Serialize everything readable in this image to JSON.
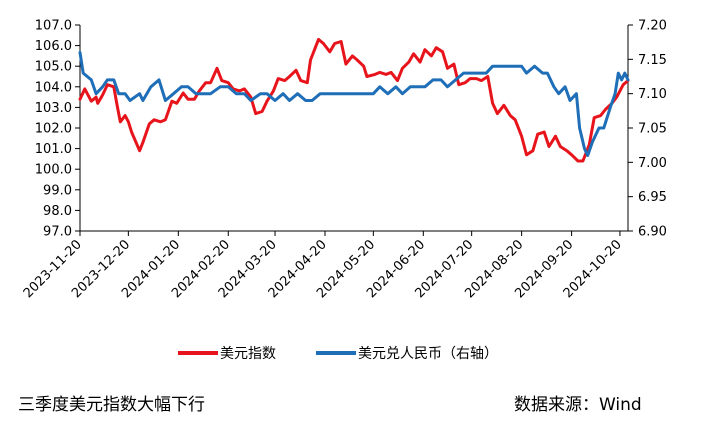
{
  "chart_data": {
    "type": "line",
    "x_ticks": [
      "2023-11-20",
      "2023-12-20",
      "2024-01-20",
      "2024-02-20",
      "2024-03-20",
      "2024-04-20",
      "2024-05-20",
      "2024-06-20",
      "2024-07-20",
      "2024-08-20",
      "2024-09-20",
      "2024-10-20"
    ],
    "x_start": "2023-11-20",
    "x_end": "2024-10-25",
    "y_left": {
      "min": 97.0,
      "max": 107.0,
      "ticks": [
        "97.0",
        "98.0",
        "99.0",
        "100.0",
        "101.0",
        "102.0",
        "103.0",
        "104.0",
        "105.0",
        "106.0",
        "107.0"
      ]
    },
    "y_right": {
      "min": 6.9,
      "max": 7.2,
      "ticks": [
        "6.90",
        "6.95",
        "7.00",
        "7.05",
        "7.10",
        "7.15",
        "7.20"
      ]
    },
    "grid": false,
    "legend_position": "bottom",
    "series": [
      {
        "name": "美元指数",
        "axis": "left",
        "color": "#e8141b",
        "points": [
          [
            "2023-11-20",
            103.4
          ],
          [
            "2023-11-23",
            103.9
          ],
          [
            "2023-11-27",
            103.3
          ],
          [
            "2023-11-30",
            103.5
          ],
          [
            "2023-12-01",
            103.2
          ],
          [
            "2023-12-04",
            103.6
          ],
          [
            "2023-12-07",
            104.1
          ],
          [
            "2023-12-11",
            104.0
          ],
          [
            "2023-12-13",
            103.1
          ],
          [
            "2023-12-15",
            102.3
          ],
          [
            "2023-12-18",
            102.6
          ],
          [
            "2023-12-20",
            102.3
          ],
          [
            "2023-12-22",
            101.8
          ],
          [
            "2023-12-27",
            100.9
          ],
          [
            "2023-12-29",
            101.3
          ],
          [
            "2024-01-02",
            102.2
          ],
          [
            "2024-01-05",
            102.4
          ],
          [
            "2024-01-09",
            102.3
          ],
          [
            "2024-01-12",
            102.4
          ],
          [
            "2024-01-16",
            103.3
          ],
          [
            "2024-01-19",
            103.2
          ],
          [
            "2024-01-23",
            103.7
          ],
          [
            "2024-01-26",
            103.4
          ],
          [
            "2024-01-30",
            103.4
          ],
          [
            "2024-02-02",
            103.8
          ],
          [
            "2024-02-06",
            104.2
          ],
          [
            "2024-02-09",
            104.2
          ],
          [
            "2024-02-13",
            104.9
          ],
          [
            "2024-02-16",
            104.3
          ],
          [
            "2024-02-20",
            104.2
          ],
          [
            "2024-02-23",
            103.9
          ],
          [
            "2024-02-27",
            103.8
          ],
          [
            "2024-03-01",
            103.9
          ],
          [
            "2024-03-05",
            103.5
          ],
          [
            "2024-03-08",
            102.7
          ],
          [
            "2024-03-12",
            102.8
          ],
          [
            "2024-03-15",
            103.3
          ],
          [
            "2024-03-19",
            103.8
          ],
          [
            "2024-03-22",
            104.4
          ],
          [
            "2024-03-26",
            104.3
          ],
          [
            "2024-03-29",
            104.5
          ],
          [
            "2024-04-02",
            104.8
          ],
          [
            "2024-04-05",
            104.3
          ],
          [
            "2024-04-09",
            104.2
          ],
          [
            "2024-04-11",
            105.3
          ],
          [
            "2024-04-16",
            106.3
          ],
          [
            "2024-04-19",
            106.1
          ],
          [
            "2024-04-23",
            105.7
          ],
          [
            "2024-04-26",
            106.1
          ],
          [
            "2024-04-30",
            106.2
          ],
          [
            "2024-05-03",
            105.1
          ],
          [
            "2024-05-07",
            105.5
          ],
          [
            "2024-05-10",
            105.3
          ],
          [
            "2024-05-14",
            105.0
          ],
          [
            "2024-05-16",
            104.5
          ],
          [
            "2024-05-21",
            104.6
          ],
          [
            "2024-05-24",
            104.7
          ],
          [
            "2024-05-28",
            104.6
          ],
          [
            "2024-05-31",
            104.7
          ],
          [
            "2024-06-04",
            104.3
          ],
          [
            "2024-06-07",
            104.9
          ],
          [
            "2024-06-11",
            105.2
          ],
          [
            "2024-06-14",
            105.6
          ],
          [
            "2024-06-18",
            105.2
          ],
          [
            "2024-06-21",
            105.8
          ],
          [
            "2024-06-25",
            105.5
          ],
          [
            "2024-06-28",
            105.9
          ],
          [
            "2024-07-02",
            105.7
          ],
          [
            "2024-07-05",
            104.9
          ],
          [
            "2024-07-09",
            105.1
          ],
          [
            "2024-07-12",
            104.1
          ],
          [
            "2024-07-16",
            104.2
          ],
          [
            "2024-07-19",
            104.4
          ],
          [
            "2024-07-23",
            104.4
          ],
          [
            "2024-07-26",
            104.3
          ],
          [
            "2024-07-30",
            104.5
          ],
          [
            "2024-08-02",
            103.2
          ],
          [
            "2024-08-05",
            102.7
          ],
          [
            "2024-08-09",
            103.1
          ],
          [
            "2024-08-13",
            102.6
          ],
          [
            "2024-08-16",
            102.4
          ],
          [
            "2024-08-20",
            101.6
          ],
          [
            "2024-08-23",
            100.7
          ],
          [
            "2024-08-27",
            100.9
          ],
          [
            "2024-08-30",
            101.7
          ],
          [
            "2024-09-03",
            101.8
          ],
          [
            "2024-09-06",
            101.1
          ],
          [
            "2024-09-10",
            101.6
          ],
          [
            "2024-09-13",
            101.1
          ],
          [
            "2024-09-17",
            100.9
          ],
          [
            "2024-09-20",
            100.7
          ],
          [
            "2024-09-24",
            100.4
          ],
          [
            "2024-09-27",
            100.4
          ],
          [
            "2024-10-01",
            101.2
          ],
          [
            "2024-10-04",
            102.5
          ],
          [
            "2024-10-08",
            102.6
          ],
          [
            "2024-10-11",
            102.9
          ],
          [
            "2024-10-15",
            103.2
          ],
          [
            "2024-10-18",
            103.5
          ],
          [
            "2024-10-22",
            104.1
          ],
          [
            "2024-10-25",
            104.3
          ]
        ]
      },
      {
        "name": "美元兑人民币（右轴）",
        "axis": "right",
        "color": "#1f6eb8",
        "points": [
          [
            "2023-11-20",
            7.16
          ],
          [
            "2023-11-22",
            7.13
          ],
          [
            "2023-11-27",
            7.12
          ],
          [
            "2023-11-30",
            7.1
          ],
          [
            "2023-12-04",
            7.11
          ],
          [
            "2023-12-07",
            7.12
          ],
          [
            "2023-12-11",
            7.12
          ],
          [
            "2023-12-14",
            7.1
          ],
          [
            "2023-12-18",
            7.1
          ],
          [
            "2023-12-21",
            7.09
          ],
          [
            "2023-12-27",
            7.1
          ],
          [
            "2023-12-29",
            7.09
          ],
          [
            "2024-01-03",
            7.11
          ],
          [
            "2024-01-08",
            7.12
          ],
          [
            "2024-01-12",
            7.09
          ],
          [
            "2024-01-17",
            7.1
          ],
          [
            "2024-01-22",
            7.11
          ],
          [
            "2024-01-26",
            7.11
          ],
          [
            "2024-01-31",
            7.1
          ],
          [
            "2024-02-05",
            7.1
          ],
          [
            "2024-02-09",
            7.1
          ],
          [
            "2024-02-15",
            7.11
          ],
          [
            "2024-02-20",
            7.11
          ],
          [
            "2024-02-25",
            7.1
          ],
          [
            "2024-03-01",
            7.1
          ],
          [
            "2024-03-05",
            7.09
          ],
          [
            "2024-03-11",
            7.1
          ],
          [
            "2024-03-15",
            7.1
          ],
          [
            "2024-03-20",
            7.09
          ],
          [
            "2024-03-25",
            7.1
          ],
          [
            "2024-03-29",
            7.09
          ],
          [
            "2024-04-03",
            7.1
          ],
          [
            "2024-04-08",
            7.09
          ],
          [
            "2024-04-12",
            7.09
          ],
          [
            "2024-04-17",
            7.1
          ],
          [
            "2024-04-22",
            7.1
          ],
          [
            "2024-04-26",
            7.1
          ],
          [
            "2024-05-01",
            7.1
          ],
          [
            "2024-05-06",
            7.1
          ],
          [
            "2024-05-10",
            7.1
          ],
          [
            "2024-05-15",
            7.1
          ],
          [
            "2024-05-20",
            7.1
          ],
          [
            "2024-05-24",
            7.11
          ],
          [
            "2024-05-29",
            7.1
          ],
          [
            "2024-06-03",
            7.11
          ],
          [
            "2024-06-07",
            7.1
          ],
          [
            "2024-06-12",
            7.11
          ],
          [
            "2024-06-17",
            7.11
          ],
          [
            "2024-06-21",
            7.11
          ],
          [
            "2024-06-26",
            7.12
          ],
          [
            "2024-07-01",
            7.12
          ],
          [
            "2024-07-05",
            7.11
          ],
          [
            "2024-07-10",
            7.12
          ],
          [
            "2024-07-15",
            7.13
          ],
          [
            "2024-07-19",
            7.13
          ],
          [
            "2024-07-24",
            7.13
          ],
          [
            "2024-07-29",
            7.13
          ],
          [
            "2024-08-02",
            7.14
          ],
          [
            "2024-08-07",
            7.14
          ],
          [
            "2024-08-12",
            7.14
          ],
          [
            "2024-08-16",
            7.14
          ],
          [
            "2024-08-20",
            7.14
          ],
          [
            "2024-08-23",
            7.13
          ],
          [
            "2024-08-28",
            7.14
          ],
          [
            "2024-09-02",
            7.13
          ],
          [
            "2024-09-05",
            7.13
          ],
          [
            "2024-09-09",
            7.11
          ],
          [
            "2024-09-12",
            7.1
          ],
          [
            "2024-09-16",
            7.11
          ],
          [
            "2024-09-19",
            7.09
          ],
          [
            "2024-09-23",
            7.1
          ],
          [
            "2024-09-25",
            7.05
          ],
          [
            "2024-09-28",
            7.02
          ],
          [
            "2024-09-30",
            7.01
          ],
          [
            "2024-10-03",
            7.03
          ],
          [
            "2024-10-07",
            7.05
          ],
          [
            "2024-10-10",
            7.05
          ],
          [
            "2024-10-14",
            7.08
          ],
          [
            "2024-10-17",
            7.1
          ],
          [
            "2024-10-19",
            7.13
          ],
          [
            "2024-10-21",
            7.12
          ],
          [
            "2024-10-23",
            7.13
          ],
          [
            "2024-10-25",
            7.12
          ]
        ]
      }
    ]
  },
  "legend": [
    {
      "label": "美元指数",
      "color": "#e8141b"
    },
    {
      "label": "美元兑人民币（右轴）",
      "color": "#1f6eb8"
    }
  ],
  "footer": {
    "caption": "三季度美元指数大幅下行",
    "source": "数据来源：Wind"
  }
}
